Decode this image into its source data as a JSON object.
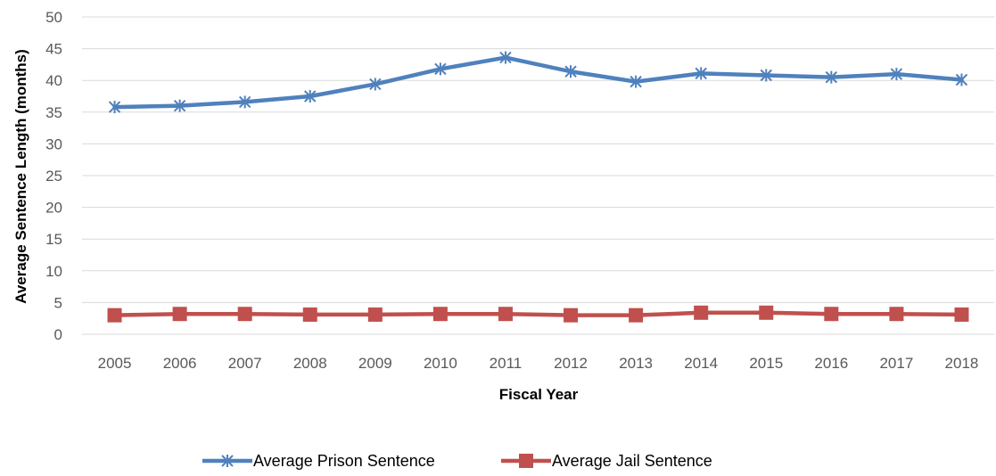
{
  "chart_data": {
    "type": "line",
    "title": "",
    "xlabel": "Fiscal Year",
    "ylabel": "Average Sentence Length (months)",
    "ylim": [
      0,
      50
    ],
    "yticks": [
      "0",
      "5",
      "10",
      "15",
      "20",
      "25",
      "30",
      "35",
      "40",
      "45",
      "50"
    ],
    "grid": true,
    "legend_position": "bottom",
    "categories": [
      "2005",
      "2006",
      "2007",
      "2008",
      "2009",
      "2010",
      "2011",
      "2012",
      "2013",
      "2014",
      "2015",
      "2016",
      "2017",
      "2018"
    ],
    "series": [
      {
        "name": "Average Prison Sentence",
        "color": "#4f81bd",
        "marker": "asterisk",
        "values": [
          35.8,
          36.0,
          36.6,
          37.5,
          39.4,
          41.8,
          43.6,
          41.4,
          39.8,
          41.1,
          40.8,
          40.5,
          41.0,
          40.1
        ]
      },
      {
        "name": "Average Jail Sentence",
        "color": "#c0504d",
        "marker": "square",
        "values": [
          3.0,
          3.2,
          3.2,
          3.1,
          3.1,
          3.2,
          3.2,
          3.0,
          3.0,
          3.4,
          3.4,
          3.2,
          3.2,
          3.1
        ]
      }
    ]
  }
}
